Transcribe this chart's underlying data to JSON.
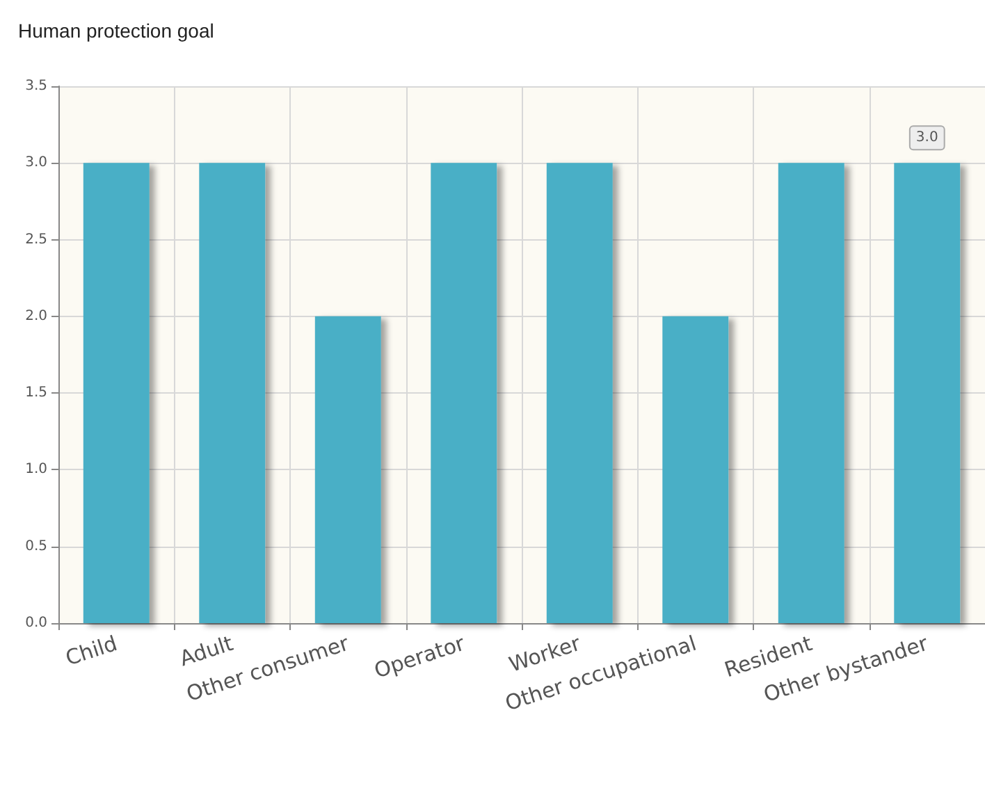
{
  "chart_data": {
    "type": "bar",
    "title": "Human protection goal",
    "categories": [
      "Child",
      "Adult",
      "Other consumer",
      "Operator",
      "Worker",
      "Other occupational",
      "Resident",
      "Other bystander"
    ],
    "values": [
      3.0,
      3.0,
      2.0,
      3.0,
      3.0,
      2.0,
      3.0,
      3.0
    ],
    "value_labels": [
      null,
      null,
      null,
      null,
      null,
      null,
      null,
      "3.0"
    ],
    "color": "#4aafc6",
    "ylim": [
      0,
      3.5
    ],
    "yticks": [
      {
        "value": 0,
        "label": "0.0"
      },
      {
        "value": 0.5,
        "label": "0.5"
      },
      {
        "value": 1,
        "label": "1.0"
      },
      {
        "value": 1.5,
        "label": "1.5"
      },
      {
        "value": 2,
        "label": "2.0"
      },
      {
        "value": 2.5,
        "label": "2.5"
      },
      {
        "value": 3,
        "label": "3.0"
      },
      {
        "value": 3.5,
        "label": "3.5"
      }
    ],
    "grid": true
  }
}
